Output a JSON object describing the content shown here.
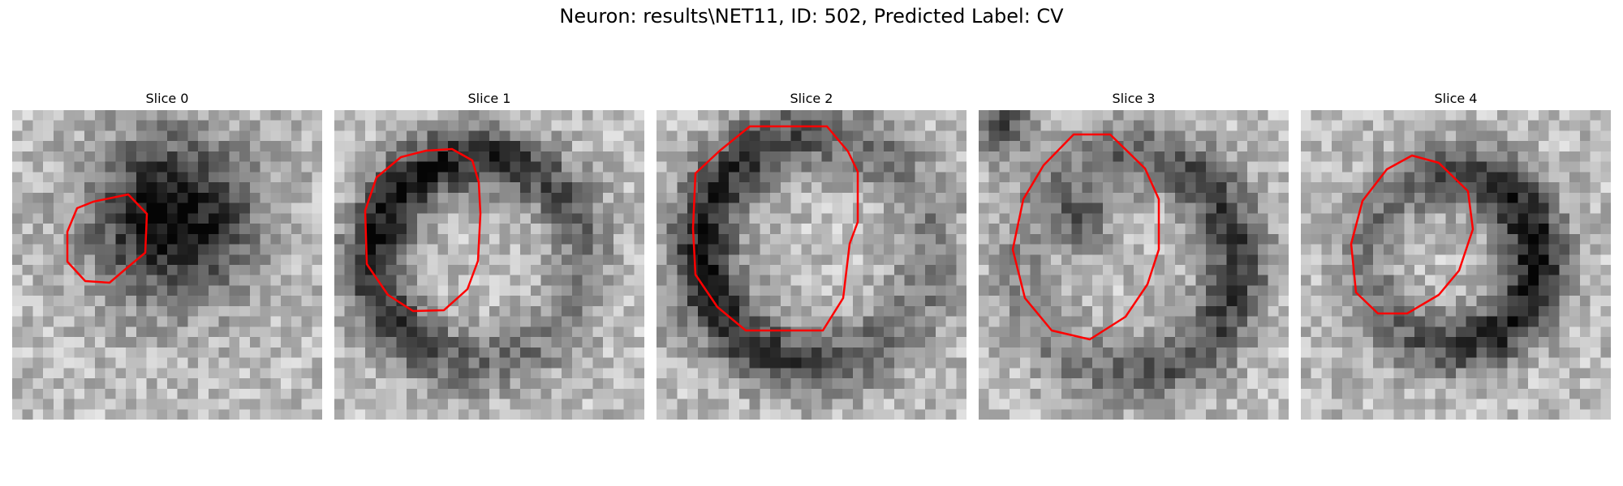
{
  "figure": {
    "title": "Neuron: results\\NET11, ID: 502, Predicted Label: CV",
    "contour_color": "#ff0000"
  },
  "slices": [
    {
      "title": "Slice 0"
    },
    {
      "title": "Slice 1"
    },
    {
      "title": "Slice 2"
    },
    {
      "title": "Slice 3"
    },
    {
      "title": "Slice 4"
    }
  ]
}
